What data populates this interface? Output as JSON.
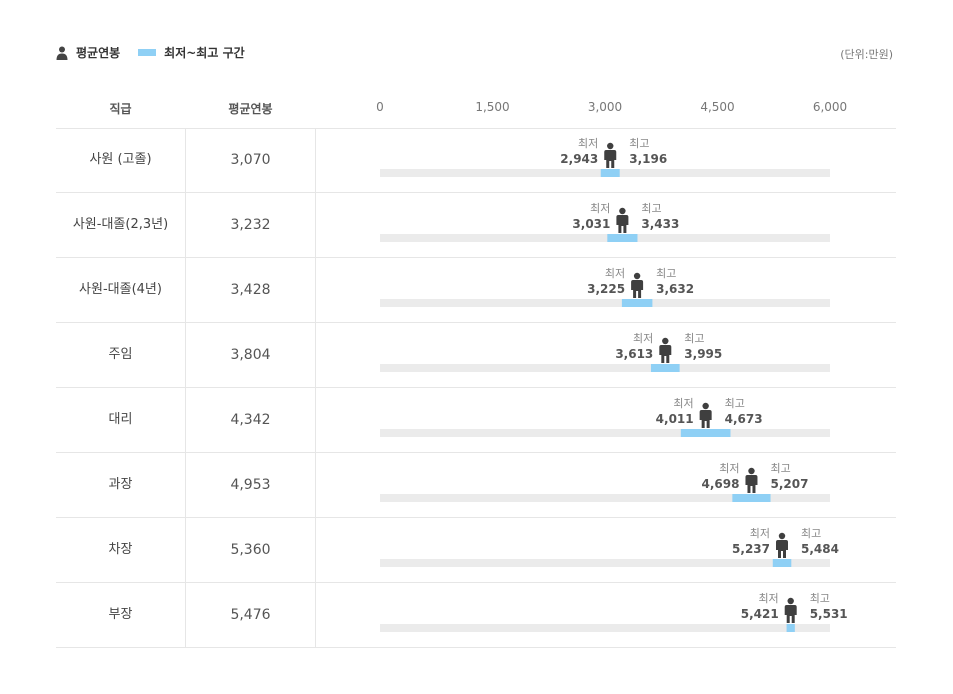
{
  "legend": {
    "avg_label": "평균연봉",
    "range_label": "최저~최고 구간",
    "person_icon": "person-icon",
    "range_color": "#8fd0f5"
  },
  "unit": "(단위:만원)",
  "header": {
    "position": "직급",
    "avg": "평균연봉"
  },
  "labels": {
    "min": "최저",
    "max": "최고"
  },
  "chart_data": {
    "type": "range-bar",
    "x_ticks": [
      "0",
      "1,500",
      "3,000",
      "4,500",
      "6,000"
    ],
    "xlim": [
      0,
      6000
    ],
    "track_color": "#ebebeb",
    "range_color": "#8fd0f5",
    "rows": [
      {
        "position": "사원 (고졸)",
        "avg": 3070,
        "avg_text": "3,070",
        "min": 2943,
        "min_text": "2,943",
        "max": 3196,
        "max_text": "3,196"
      },
      {
        "position": "사원-대졸(2,3년)",
        "avg": 3232,
        "avg_text": "3,232",
        "min": 3031,
        "min_text": "3,031",
        "max": 3433,
        "max_text": "3,433"
      },
      {
        "position": "사원-대졸(4년)",
        "avg": 3428,
        "avg_text": "3,428",
        "min": 3225,
        "min_text": "3,225",
        "max": 3632,
        "max_text": "3,632"
      },
      {
        "position": "주임",
        "avg": 3804,
        "avg_text": "3,804",
        "min": 3613,
        "min_text": "3,613",
        "max": 3995,
        "max_text": "3,995"
      },
      {
        "position": "대리",
        "avg": 4342,
        "avg_text": "4,342",
        "min": 4011,
        "min_text": "4,011",
        "max": 4673,
        "max_text": "4,673"
      },
      {
        "position": "과장",
        "avg": 4953,
        "avg_text": "4,953",
        "min": 4698,
        "min_text": "4,698",
        "max": 5207,
        "max_text": "5,207"
      },
      {
        "position": "차장",
        "avg": 5360,
        "avg_text": "5,360",
        "min": 5237,
        "min_text": "5,237",
        "max": 5484,
        "max_text": "5,484"
      },
      {
        "position": "부장",
        "avg": 5476,
        "avg_text": "5,476",
        "min": 5421,
        "min_text": "5,421",
        "max": 5531,
        "max_text": "5,531"
      }
    ]
  }
}
